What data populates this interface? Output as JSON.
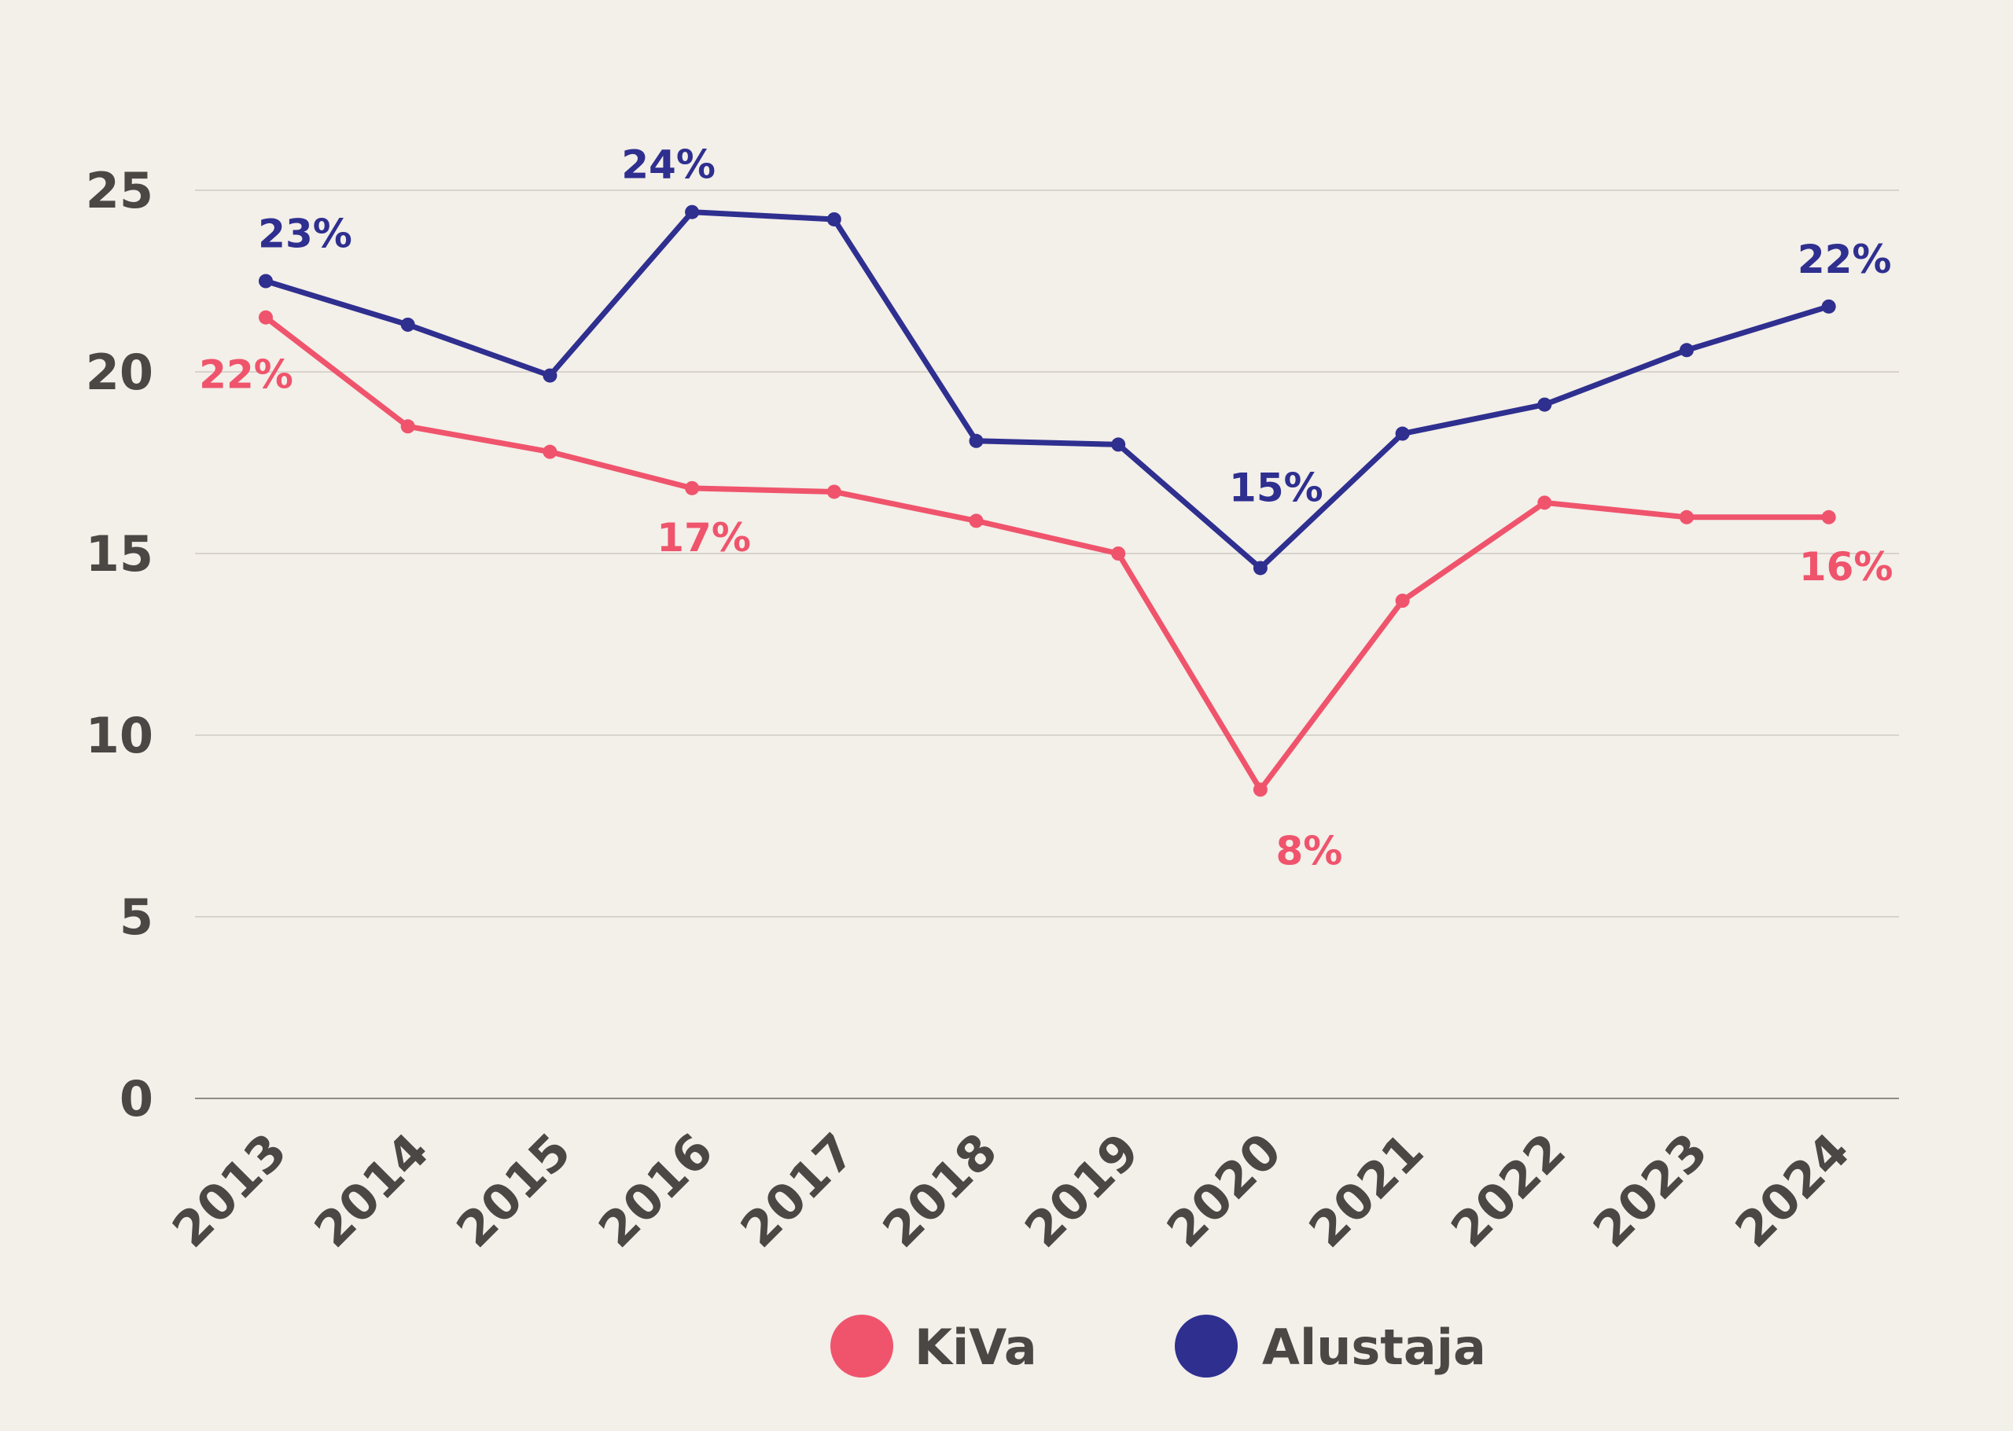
{
  "chart_data": {
    "type": "line",
    "categories": [
      "2013",
      "2014",
      "2015",
      "2016",
      "2017",
      "2018",
      "2019",
      "2020",
      "2021",
      "2022",
      "2023",
      "2024"
    ],
    "ylim": [
      0,
      25
    ],
    "yticks": [
      "0",
      "5",
      "10",
      "15",
      "20",
      "25"
    ],
    "grid": true,
    "legend_position": "bottom-center",
    "series": [
      {
        "name": "KiVa",
        "color": "#ef546c",
        "values": [
          21.5,
          18.5,
          17.8,
          16.8,
          16.7,
          15.9,
          15.0,
          8.5,
          13.7,
          16.4,
          16.0,
          16.0
        ]
      },
      {
        "name": "Alustaja",
        "color": "#2e2f8f",
        "values": [
          22.5,
          21.3,
          19.9,
          24.4,
          24.2,
          18.1,
          18.0,
          14.6,
          18.3,
          19.1,
          20.6,
          21.8
        ]
      }
    ],
    "annotations": [
      {
        "series": 0,
        "index": 0,
        "text": "22%"
      },
      {
        "series": 0,
        "index": 3,
        "text": "17%"
      },
      {
        "series": 0,
        "index": 7,
        "text": "8%"
      },
      {
        "series": 0,
        "index": 11,
        "text": "16%"
      },
      {
        "series": 1,
        "index": 0,
        "text": "23%"
      },
      {
        "series": 1,
        "index": 3,
        "text": "24%"
      },
      {
        "series": 1,
        "index": 7,
        "text": "15%"
      },
      {
        "series": 1,
        "index": 11,
        "text": "22%"
      }
    ]
  }
}
